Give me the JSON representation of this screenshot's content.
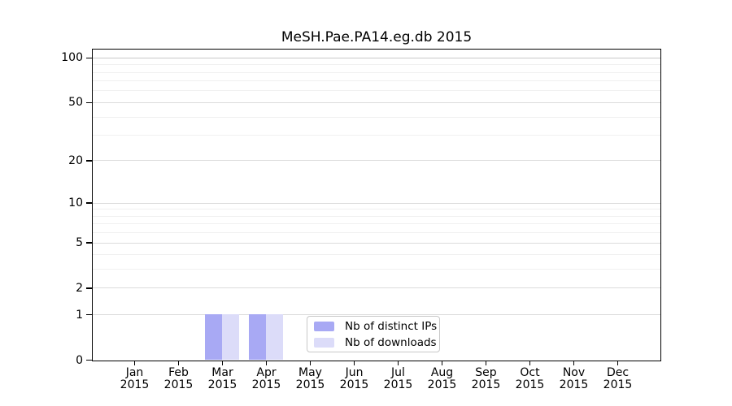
{
  "title": "MeSH.Pae.PA14.eg.db 2015",
  "chart_data": {
    "type": "bar",
    "title": "MeSH.Pae.PA14.eg.db 2015",
    "categories": [
      "Jan",
      "Feb",
      "Mar",
      "Apr",
      "May",
      "Jun",
      "Jul",
      "Aug",
      "Sep",
      "Oct",
      "Nov",
      "Dec"
    ],
    "x_sublabel": "2015",
    "series": [
      {
        "name": "Nb of distinct IPs",
        "color": "#a8a9f4",
        "values": [
          0,
          0,
          1,
          1,
          0,
          0,
          0,
          0,
          0,
          0,
          0,
          0
        ]
      },
      {
        "name": "Nb of downloads",
        "color": "#dcdcf9",
        "values": [
          0,
          0,
          1,
          1,
          0,
          0,
          0,
          0,
          0,
          0,
          0,
          0
        ]
      }
    ],
    "yscale": "log1p",
    "ylim": [
      0,
      113
    ],
    "yticks": [
      0,
      1,
      2,
      5,
      10,
      20,
      50,
      100
    ],
    "yticks_minor": [
      3,
      4,
      6,
      7,
      8,
      9,
      30,
      40,
      60,
      70,
      80,
      90
    ],
    "grid": "horizontal",
    "legend_position": "inside-bottom-center",
    "colors": {
      "spine": "#000000",
      "grid_major": "#dcdcdc",
      "grid_top": "#c8c8c8",
      "grid_minor": "#f0f0f0",
      "legend_border": "#c8c8c8"
    }
  }
}
